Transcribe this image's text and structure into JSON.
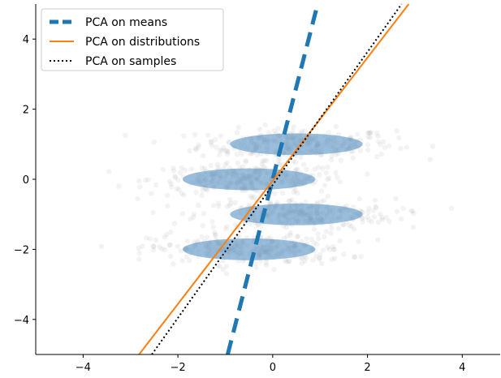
{
  "chart_data": {
    "type": "scatter",
    "xlim": [
      -5,
      4.8
    ],
    "ylim": [
      -5,
      5
    ],
    "x_ticks": [
      -4,
      -2,
      0,
      2,
      4
    ],
    "y_ticks": [
      -4,
      -2,
      0,
      2,
      4
    ],
    "x_tick_labels": [
      "−4",
      "−2",
      "0",
      "2",
      "4"
    ],
    "y_tick_labels": [
      "−4",
      "−2",
      "0",
      "2",
      "4"
    ],
    "grid": false,
    "legend_position": "top-left",
    "samples_color": "#a0a0a0",
    "distribution_color": "#5b94c4",
    "distributions": [
      {
        "mean": [
          0.5,
          1.0
        ],
        "width": 2.8,
        "height": 0.62
      },
      {
        "mean": [
          -0.5,
          0.0
        ],
        "width": 2.8,
        "height": 0.62
      },
      {
        "mean": [
          0.5,
          -1.0
        ],
        "width": 2.8,
        "height": 0.62
      },
      {
        "mean": [
          -0.5,
          -2.0
        ],
        "width": 2.8,
        "height": 0.62
      }
    ],
    "series": [
      {
        "name": "PCA on means",
        "color": "#1f77b4",
        "style": "dashed",
        "x": [
          -0.95,
          0.92
        ],
        "y": [
          -5.0,
          4.85
        ]
      },
      {
        "name": "PCA on distributions",
        "color": "#ff7f0e",
        "style": "solid",
        "x": [
          -2.82,
          2.87
        ],
        "y": [
          -5.0,
          5.0
        ]
      },
      {
        "name": "PCA on samples",
        "color": "#000000",
        "style": "dotted",
        "x": [
          -2.55,
          2.72
        ],
        "y": [
          -5.0,
          5.0
        ]
      }
    ]
  }
}
